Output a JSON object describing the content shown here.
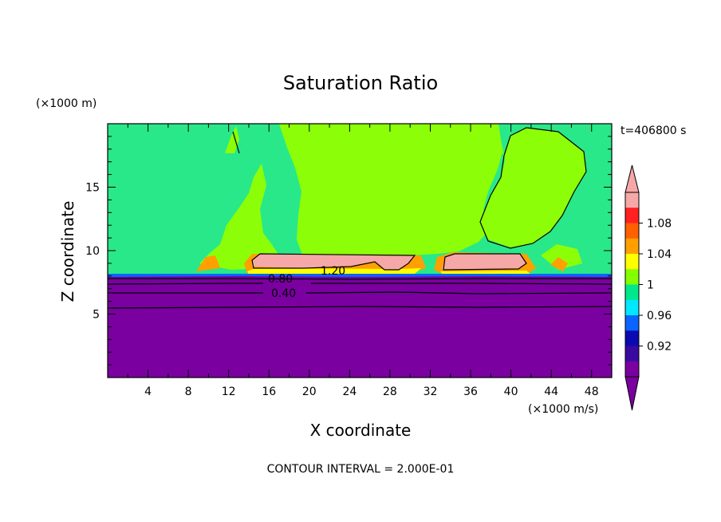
{
  "chart_data": {
    "type": "heatmap",
    "title": "Saturation Ratio",
    "time_label": "t=406800 s",
    "xlabel": "X coordinate",
    "ylabel": "Z coordinate",
    "x_unit": "(×1000 m/s)",
    "y_unit": "(×1000 m)",
    "footer": "CONTOUR INTERVAL = 2.000E-01",
    "xlim": [
      0,
      50
    ],
    "ylim": [
      0,
      20
    ],
    "x_ticks": [
      "4",
      "8",
      "12",
      "16",
      "20",
      "24",
      "28",
      "32",
      "36",
      "40",
      "44",
      "48"
    ],
    "y_ticks": [
      "5",
      "10",
      "15"
    ],
    "contour_labels": [
      "1.20",
      "0.80",
      "0.40"
    ],
    "colorbar": {
      "tick_labels": [
        "1.08",
        "1.04",
        "1",
        "0.96",
        "0.92"
      ],
      "levels": [
        0.9,
        0.92,
        0.94,
        0.96,
        0.98,
        1.0,
        1.02,
        1.04,
        1.06,
        1.08,
        1.1
      ],
      "colors": [
        "#7a00a0",
        "#3a0aa0",
        "#0a0ab0",
        "#0a64ff",
        "#00e8ff",
        "#00e88c",
        "#84ff00",
        "#ffff00",
        "#ffa000",
        "#ff6000",
        "#ff2020",
        "#f6a7a7"
      ]
    },
    "regions": {
      "background": "#29e88a",
      "upper_plume": "#8cff08",
      "layer": "#f6a7a7",
      "lower": "#7a00a0",
      "edge_orange": "#ffa000",
      "edge_yellow": "#ffff00",
      "edge_blue": "#0a64ff"
    }
  }
}
